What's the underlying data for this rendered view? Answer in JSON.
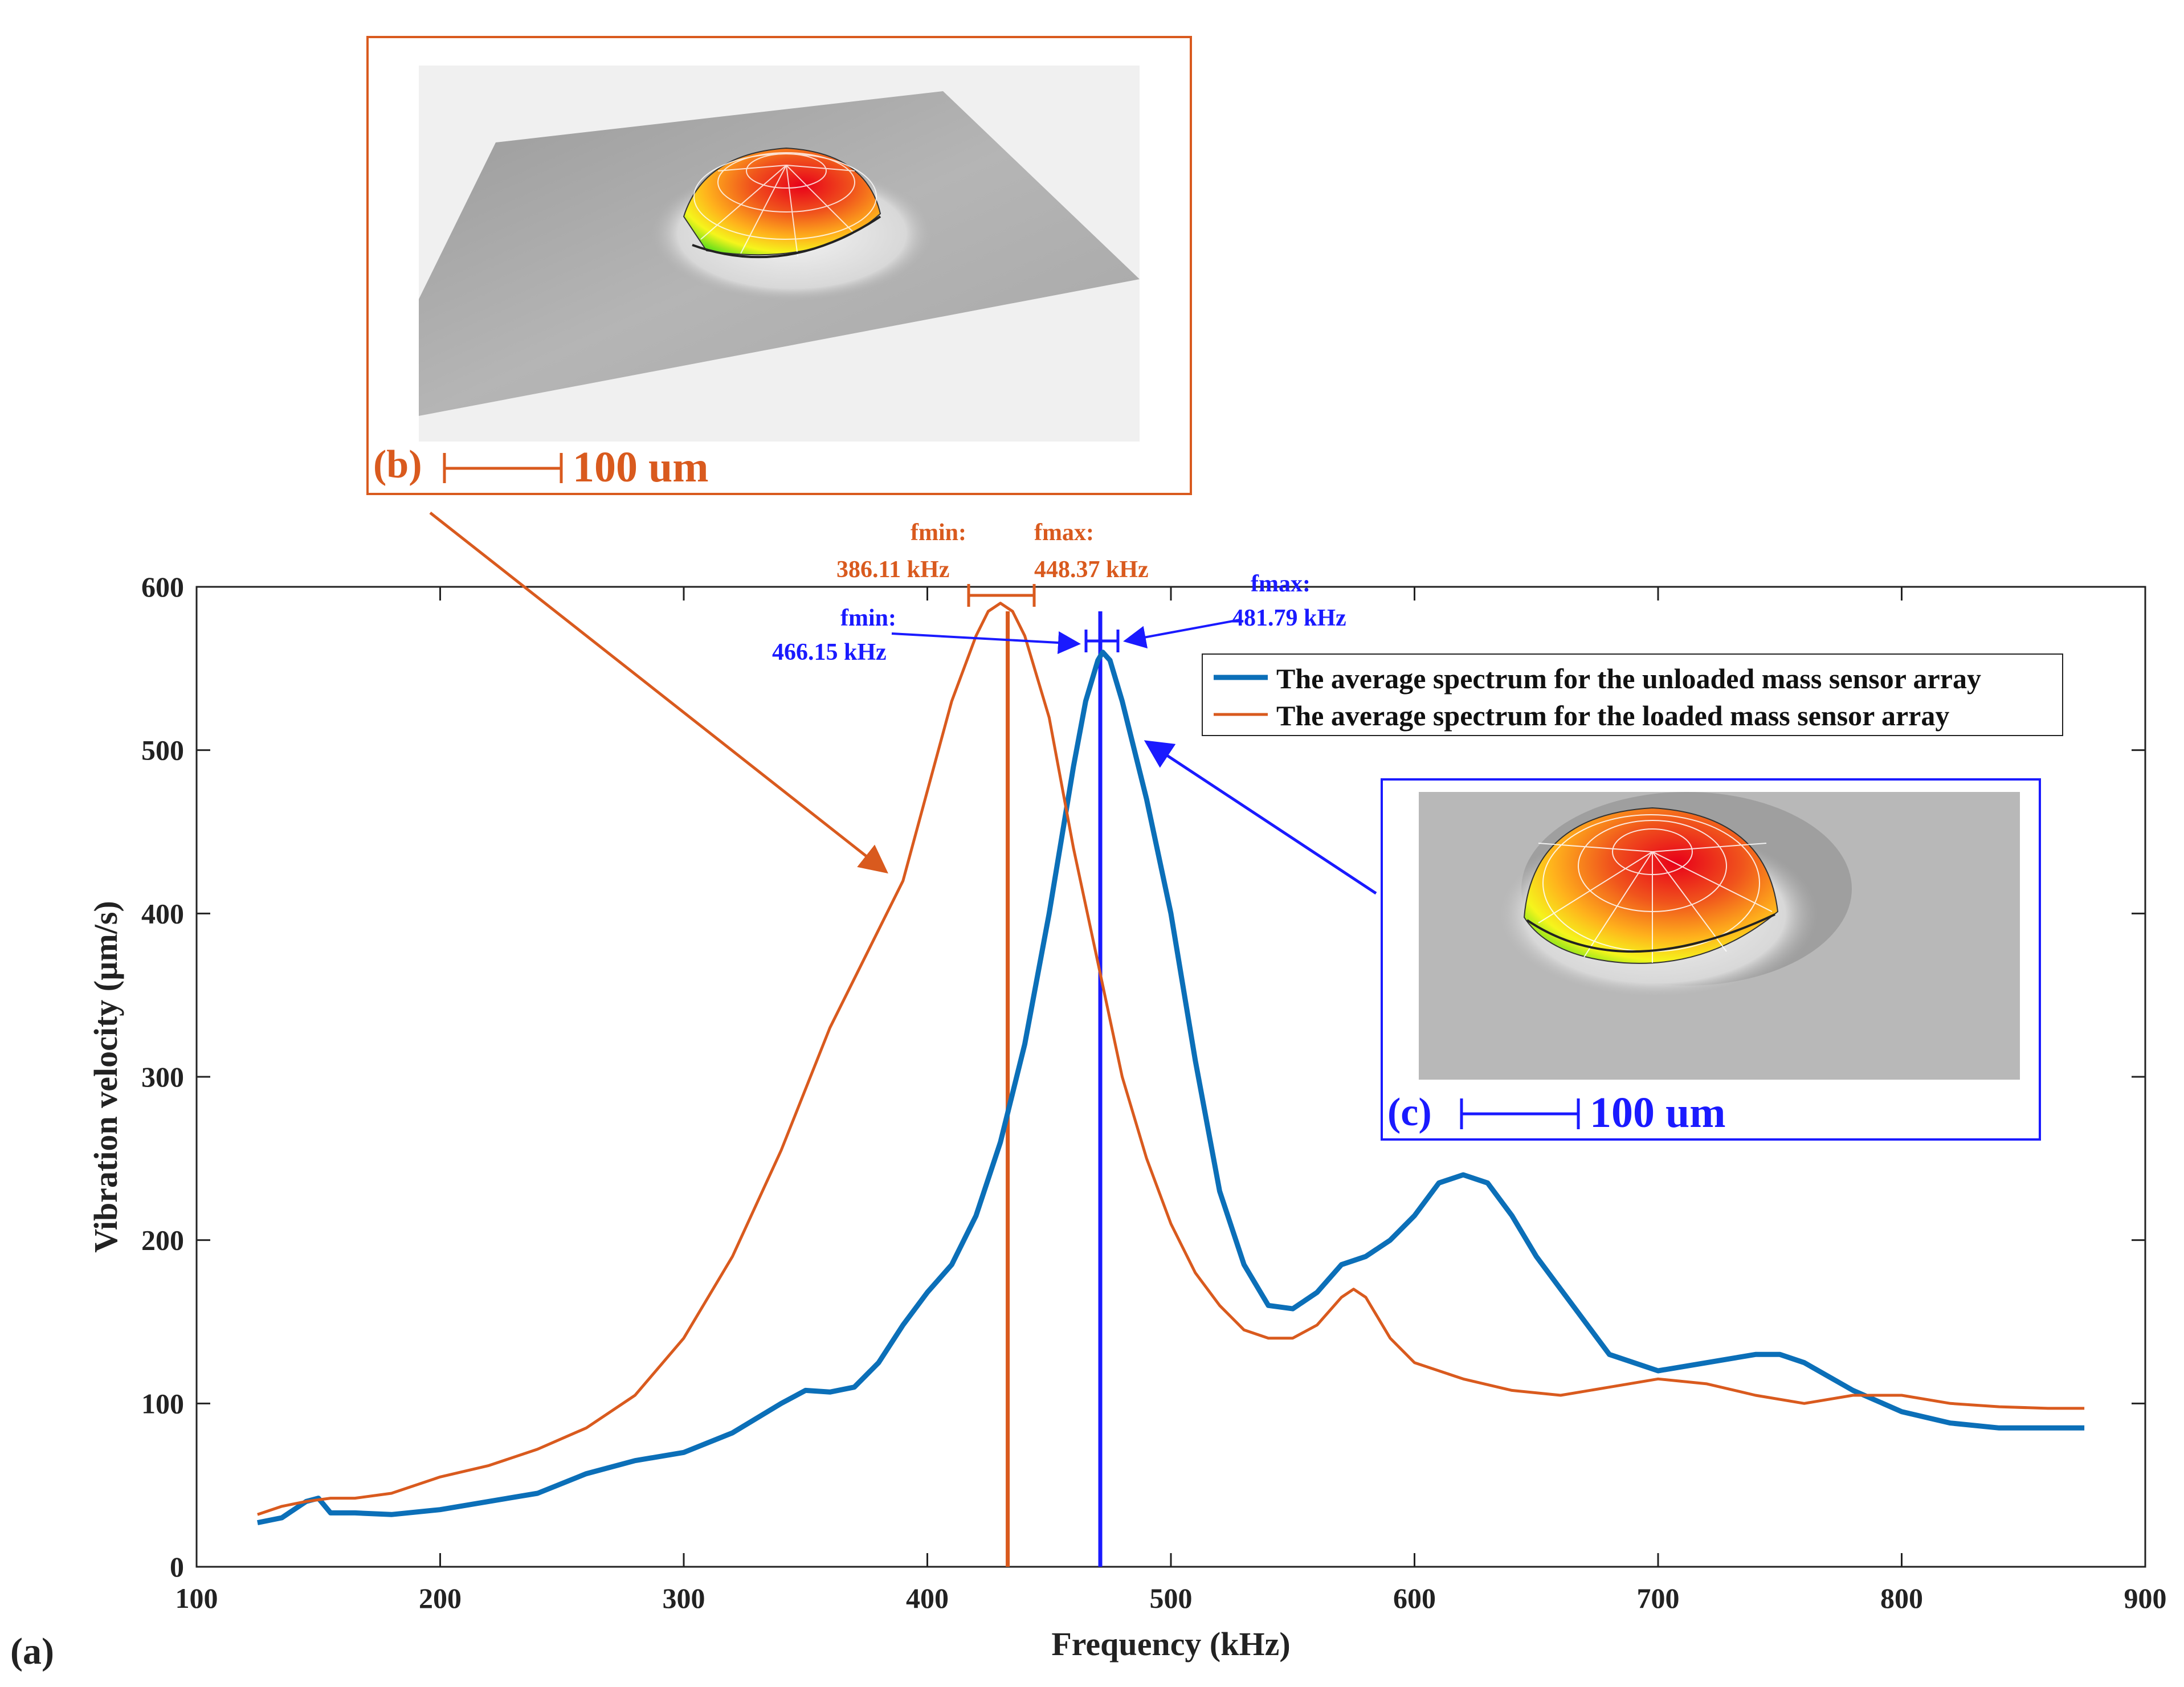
{
  "panel_labels": {
    "a": "(a)",
    "b": "(b)",
    "c": "(c)"
  },
  "scale_bars": {
    "b": "100 um",
    "c": "100 um"
  },
  "annotations": {
    "loaded": {
      "fmin_label": "fmin:",
      "fmin_value": "386.11 kHz",
      "fmax_label": "fmax:",
      "fmax_value": "448.37 kHz"
    },
    "unloaded": {
      "fmin_label": "fmin:",
      "fmin_value": "466.15 kHz",
      "fmax_label": "fmax:",
      "fmax_value": "481.79 kHz"
    }
  },
  "colors": {
    "unloaded": "#0b6fb8",
    "loaded": "#d95a1e",
    "blue_annot": "#1a1aff",
    "orange_annot": "#d95a1e",
    "axis": "#222222"
  },
  "chart_data": {
    "type": "line",
    "title": "",
    "xlabel": "Frequency (kHz)",
    "ylabel": "Vibration velocity (µm/s)",
    "xlim": [
      100,
      900
    ],
    "ylim": [
      0,
      600
    ],
    "xticks": [
      100,
      200,
      300,
      400,
      500,
      600,
      700,
      800,
      900
    ],
    "yticks": [
      0,
      100,
      200,
      300,
      400,
      500,
      600
    ],
    "legend_position": "top-right",
    "series": [
      {
        "name": "The average spectrum for the unloaded mass sensor array",
        "color": "#0b6fb8",
        "x": [
          125,
          135,
          145,
          150,
          155,
          165,
          180,
          200,
          220,
          240,
          260,
          280,
          300,
          320,
          340,
          350,
          360,
          370,
          380,
          390,
          400,
          410,
          420,
          430,
          440,
          450,
          460,
          465,
          470,
          472,
          475,
          480,
          490,
          500,
          510,
          520,
          530,
          540,
          550,
          560,
          570,
          580,
          590,
          600,
          610,
          620,
          630,
          640,
          650,
          660,
          680,
          700,
          720,
          740,
          750,
          760,
          780,
          800,
          820,
          840,
          860,
          875
        ],
        "y": [
          27,
          30,
          40,
          42,
          33,
          33,
          32,
          35,
          40,
          45,
          57,
          65,
          70,
          82,
          100,
          108,
          107,
          110,
          125,
          148,
          168,
          185,
          215,
          260,
          320,
          400,
          490,
          530,
          555,
          560,
          555,
          530,
          470,
          400,
          310,
          230,
          185,
          160,
          158,
          168,
          185,
          190,
          200,
          215,
          235,
          240,
          235,
          215,
          190,
          170,
          130,
          120,
          125,
          130,
          130,
          125,
          108,
          95,
          88,
          85,
          85,
          85
        ]
      },
      {
        "name": "The average spectrum for the loaded mass sensor array",
        "color": "#d95a1e",
        "x": [
          125,
          135,
          145,
          155,
          165,
          180,
          200,
          220,
          240,
          260,
          280,
          300,
          320,
          340,
          360,
          380,
          390,
          400,
          410,
          420,
          425,
          430,
          435,
          440,
          450,
          460,
          470,
          480,
          490,
          500,
          510,
          520,
          530,
          540,
          550,
          560,
          570,
          575,
          580,
          590,
          600,
          620,
          640,
          660,
          680,
          700,
          720,
          740,
          760,
          780,
          800,
          820,
          840,
          860,
          875
        ],
        "y": [
          32,
          37,
          40,
          42,
          42,
          45,
          55,
          62,
          72,
          85,
          105,
          140,
          190,
          255,
          330,
          390,
          420,
          475,
          530,
          570,
          585,
          590,
          585,
          570,
          520,
          440,
          370,
          300,
          250,
          210,
          180,
          160,
          145,
          140,
          140,
          148,
          165,
          170,
          165,
          140,
          125,
          115,
          108,
          105,
          110,
          115,
          112,
          105,
          100,
          105,
          105,
          100,
          98,
          97,
          97
        ]
      }
    ],
    "vertical_markers": [
      {
        "x": 433,
        "color": "#d95a1e"
      },
      {
        "x": 471,
        "color": "#1a1aff"
      }
    ]
  }
}
